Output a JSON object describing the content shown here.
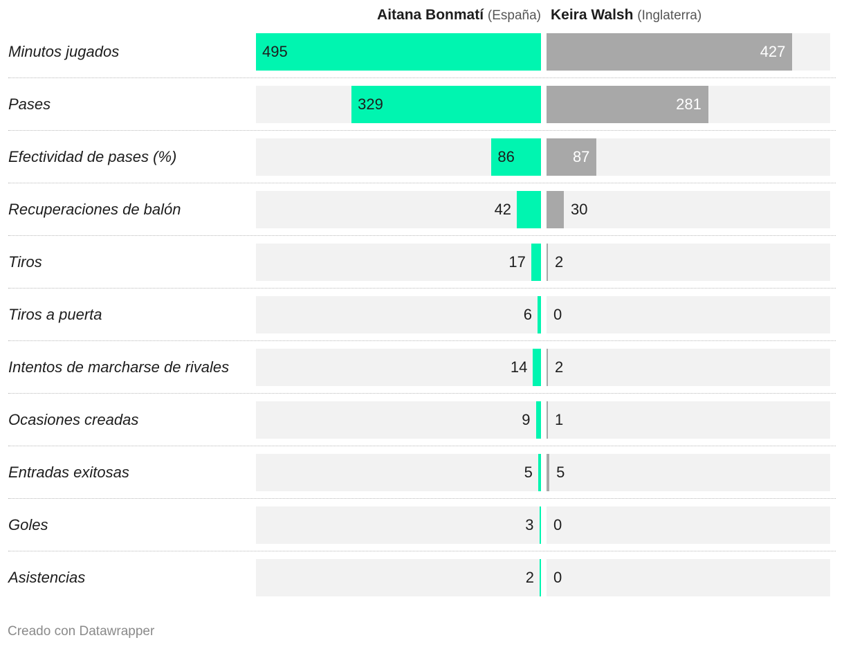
{
  "chart_data": {
    "type": "bar",
    "title": "",
    "series": [
      {
        "name": "Aitana Bonmatí",
        "country": "(España)",
        "color": "#00f5b0",
        "values": [
          495,
          329,
          86,
          42,
          17,
          6,
          14,
          9,
          5,
          3,
          2
        ]
      },
      {
        "name": "Keira Walsh",
        "country": "(Inglaterra)",
        "color": "#a8a8a8",
        "values": [
          427,
          281,
          87,
          30,
          2,
          0,
          2,
          1,
          5,
          0,
          0
        ]
      }
    ],
    "categories": [
      "Minutos jugados",
      "Pases",
      "Efectividad de pases (%)",
      "Recuperaciones de balón",
      "Tiros",
      "Tiros a puerta",
      "Intentos de marcharse de rivales",
      "Ocasiones creadas",
      "Entradas exitosas",
      "Goles",
      "Asistencias"
    ],
    "xlim": [
      0,
      495
    ]
  },
  "footer": {
    "credit": "Creado con Datawrapper"
  }
}
